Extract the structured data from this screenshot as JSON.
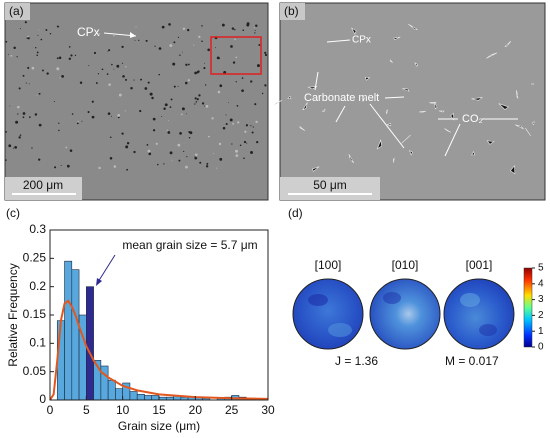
{
  "panels": {
    "a": {
      "label": "(a)",
      "annotation": "CPx",
      "scale_bar": "200 μm"
    },
    "b": {
      "label": "(b)",
      "annotations": [
        "CPx",
        "Carbonate melt",
        "CO₂"
      ],
      "scale_bar": "50 μm"
    }
  },
  "chart_data": {
    "type": "histogram",
    "label": "(c)",
    "annotation": "mean grain size = 5.7 μm",
    "x_label": "Grain size (μm)",
    "y_label": "Relative Frequency",
    "bins": [
      0,
      1,
      2,
      3,
      4,
      5,
      6,
      7,
      8,
      9,
      10,
      11,
      12,
      13,
      14,
      15,
      16,
      17,
      18,
      19,
      20,
      21,
      22,
      23,
      24,
      25,
      26,
      27,
      28,
      29,
      30
    ],
    "values": [
      0,
      0.14,
      0.245,
      0.23,
      0.15,
      0.2,
      0.07,
      0.06,
      0.035,
      0.02,
      0.03,
      0.015,
      0.01,
      0.008,
      0.008,
      0.005,
      0.005,
      0.008,
      0.005,
      0.005,
      0.005,
      0.003,
      0,
      0.003,
      0.005,
      0.008,
      0.005,
      0,
      0.002,
      0
    ],
    "color": "#58a8de",
    "highlight": {
      "bin_index": 5,
      "color": "#2f2a8f"
    },
    "curve": {
      "color": "#e2571e",
      "x": [
        0,
        0.5,
        1,
        1.5,
        2,
        2.5,
        3,
        3.5,
        4,
        5,
        6,
        7,
        8,
        10,
        12,
        15,
        20,
        25,
        30
      ],
      "values": [
        0,
        0.01,
        0.07,
        0.14,
        0.17,
        0.175,
        0.165,
        0.15,
        0.13,
        0.095,
        0.07,
        0.05,
        0.04,
        0.025,
        0.017,
        0.01,
        0.005,
        0.003,
        0.002
      ]
    },
    "xlim": [
      0,
      30
    ],
    "xticks": [
      0,
      5,
      10,
      15,
      20,
      25,
      30
    ],
    "ylim": [
      0,
      0.3
    ],
    "yticks": [
      0,
      0.05,
      0.1,
      0.15,
      0.2,
      0.25,
      0.3
    ]
  },
  "pole_figures": {
    "label": "(d)",
    "titles": [
      "[100]",
      "[010]",
      "[001]"
    ],
    "colorbar": {
      "lim": [
        0,
        5
      ],
      "ticks": [
        0,
        1,
        2,
        3,
        4,
        5
      ]
    },
    "j_index": "J = 1.36",
    "m_index": "M = 0.017"
  }
}
